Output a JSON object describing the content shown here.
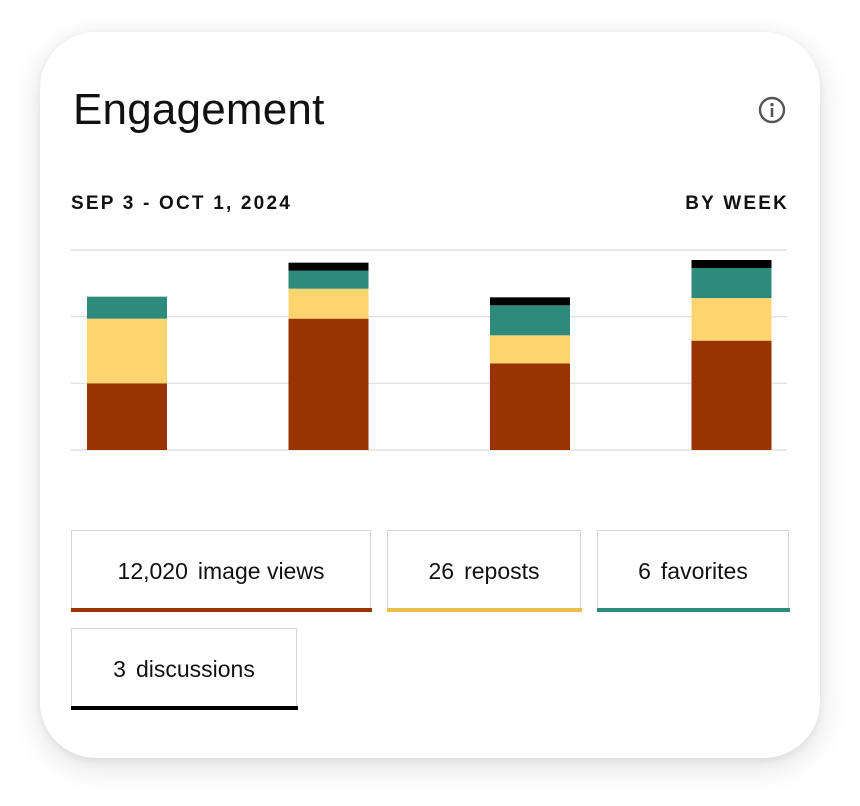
{
  "header": {
    "title": "Engagement",
    "info_icon": "info-circle-icon"
  },
  "range": {
    "dates": "SEP 3 - OCT 1, 2024",
    "granularity": "BY WEEK"
  },
  "colors": {
    "image_views": "#993300",
    "reposts": "#FDD46F",
    "favorites": "#2E8A7A",
    "discussions": "#000000",
    "grid": "#e2e2e2"
  },
  "legend": [
    {
      "key": "image_views",
      "value": "12,020",
      "label": "image views",
      "color": "#993300"
    },
    {
      "key": "reposts",
      "value": "26",
      "label": "reposts",
      "color": "#EDBE4E"
    },
    {
      "key": "favorites",
      "value": "6",
      "label": "favorites",
      "color": "#2E8A7A"
    },
    {
      "key": "discussions",
      "value": "3",
      "label": "discussions",
      "color": "#000000"
    }
  ],
  "chart_data": {
    "type": "bar",
    "stacked": true,
    "categories": [
      "",
      "",
      "",
      ""
    ],
    "series": [
      {
        "name": "image views",
        "values": [
          1.0,
          1.97,
          1.3,
          1.64
        ],
        "color": "#993300"
      },
      {
        "name": "reposts",
        "values": [
          0.97,
          0.45,
          0.42,
          0.64
        ],
        "color": "#FDD46F"
      },
      {
        "name": "favorites",
        "values": [
          0.33,
          0.27,
          0.45,
          0.45
        ],
        "color": "#2E8A7A"
      },
      {
        "name": "discussions",
        "values": [
          0,
          0.12,
          0.12,
          0.12
        ],
        "color": "#000000"
      }
    ],
    "ylim": [
      0,
      3
    ],
    "grid": true,
    "legend": "bottom"
  }
}
